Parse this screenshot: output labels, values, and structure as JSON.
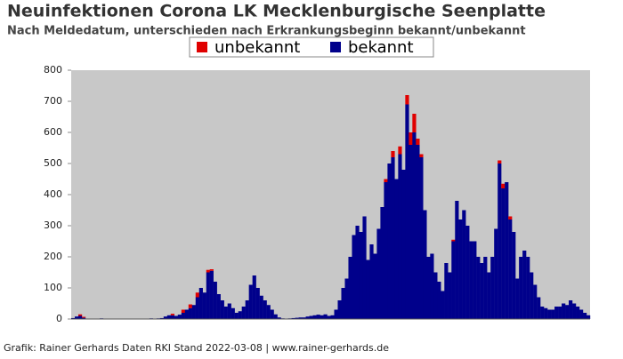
{
  "chart_data": {
    "type": "stacked-bar",
    "title": "Neuinfektionen Corona LK Mecklenburgische Seenplatte",
    "subtitle": "Nach Meldedatum, unterschieden nach Erkrankungsbeginn bekannt/unbekannt",
    "source": "Grafik: Rainer Gerhards Daten RKI Stand 2022-03-08 | www.rainer-gerhards.de",
    "categories": [
      null,
      null,
      null,
      null,
      null,
      null,
      null,
      null,
      null,
      null,
      null,
      null,
      null,
      null,
      null,
      null,
      null,
      null,
      null,
      null,
      null,
      null,
      null,
      null,
      null,
      null,
      null,
      null,
      null,
      null,
      null,
      null,
      null,
      null,
      null,
      null,
      null,
      null,
      null,
      null,
      null,
      null,
      null,
      null,
      null,
      null,
      null,
      null,
      null,
      null,
      null,
      null,
      null,
      null,
      null,
      null,
      null,
      null,
      null,
      null,
      null,
      null,
      null,
      null,
      null,
      null,
      null,
      null,
      null,
      null,
      null,
      null,
      null,
      null,
      null,
      null,
      null,
      null,
      null,
      null,
      null,
      null,
      null,
      null,
      null,
      null,
      null,
      null,
      null,
      null,
      null,
      null,
      null,
      null,
      null,
      null,
      null,
      null,
      null,
      null,
      null,
      null,
      null,
      null,
      null,
      null,
      null,
      null,
      null,
      null,
      null,
      null,
      null,
      null,
      null,
      null,
      null,
      null,
      null,
      null,
      null,
      null,
      null,
      null,
      null,
      null,
      null,
      null,
      null,
      null,
      null,
      null,
      null,
      null,
      null,
      null,
      null,
      null,
      null,
      null,
      null,
      null,
      null,
      null,
      null,
      null
    ],
    "series": [
      {
        "name": "bekannt",
        "color": "#00008b",
        "values": [
          3,
          8,
          10,
          4,
          1,
          0,
          0,
          1,
          2,
          1,
          0,
          0,
          0,
          1,
          0,
          0,
          0,
          0,
          0,
          1,
          0,
          1,
          2,
          1,
          2,
          3,
          8,
          12,
          12,
          10,
          14,
          20,
          30,
          35,
          45,
          70,
          100,
          85,
          150,
          155,
          120,
          80,
          60,
          40,
          50,
          35,
          20,
          25,
          40,
          60,
          110,
          140,
          100,
          75,
          60,
          45,
          30,
          15,
          5,
          2,
          1,
          2,
          3,
          4,
          5,
          5,
          8,
          10,
          12,
          14,
          12,
          15,
          10,
          12,
          30,
          60,
          100,
          130,
          200,
          270,
          300,
          280,
          330,
          190,
          240,
          210,
          290,
          360,
          440,
          500,
          520,
          450,
          530,
          480,
          690,
          560,
          600,
          560,
          520,
          350,
          200,
          210,
          150,
          120,
          90,
          180,
          150,
          250,
          380,
          320,
          350,
          300,
          250,
          250,
          200,
          180,
          200,
          150,
          200,
          290,
          500,
          420,
          440,
          320,
          280,
          130,
          200,
          220,
          200,
          150,
          110,
          70,
          40,
          35,
          30,
          30,
          40,
          40,
          50,
          45,
          60,
          50,
          40,
          30,
          20,
          12
        ]
      },
      {
        "name": "unbekannt",
        "color": "#e00000",
        "values": [
          0,
          0,
          5,
          3,
          0,
          0,
          0,
          0,
          0,
          0,
          0,
          0,
          0,
          0,
          0,
          0,
          0,
          0,
          0,
          0,
          0,
          0,
          0,
          0,
          0,
          0,
          0,
          0,
          5,
          0,
          0,
          10,
          0,
          12,
          0,
          15,
          0,
          0,
          8,
          5,
          0,
          0,
          0,
          0,
          0,
          0,
          0,
          0,
          0,
          0,
          0,
          0,
          0,
          0,
          0,
          0,
          0,
          0,
          0,
          0,
          0,
          0,
          0,
          0,
          0,
          0,
          0,
          0,
          0,
          0,
          0,
          0,
          0,
          0,
          0,
          0,
          0,
          0,
          0,
          0,
          0,
          0,
          0,
          0,
          0,
          0,
          0,
          0,
          10,
          0,
          20,
          0,
          25,
          0,
          30,
          40,
          60,
          20,
          10,
          0,
          0,
          0,
          0,
          0,
          0,
          0,
          0,
          5,
          0,
          0,
          0,
          0,
          0,
          0,
          0,
          0,
          0,
          0,
          0,
          0,
          10,
          15,
          0,
          10,
          0,
          0,
          0,
          0,
          0,
          0,
          0,
          0,
          0,
          0,
          0,
          0,
          0,
          0,
          0,
          0,
          0,
          0,
          0,
          0,
          0,
          0
        ]
      }
    ],
    "legend_order": [
      "unbekannt",
      "bekannt"
    ],
    "ylim": [
      0,
      800
    ],
    "yticks": [
      0,
      100,
      200,
      300,
      400,
      500,
      600,
      700,
      800
    ],
    "plot_background": "#c8c8c8"
  }
}
